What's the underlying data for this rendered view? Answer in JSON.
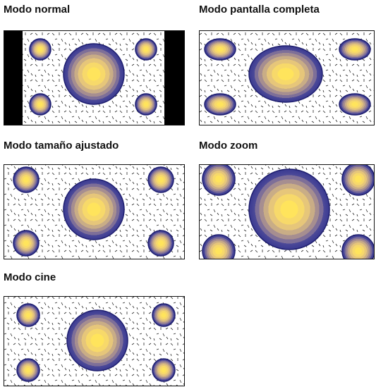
{
  "panels": [
    {
      "title": "Modo normal"
    },
    {
      "title": "Modo pantalla completa"
    },
    {
      "title": "Modo tamaño ajustado"
    },
    {
      "title": "Modo zoom"
    },
    {
      "title": "Modo cine"
    }
  ]
}
